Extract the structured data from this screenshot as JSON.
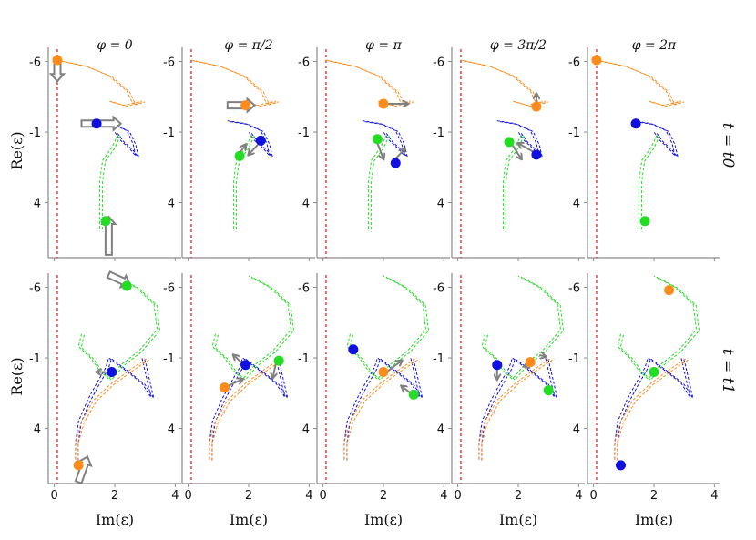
{
  "chart_data": {
    "type": "scatter",
    "title": "",
    "xlabel": "Im(ε)",
    "ylabel": "Re(ε)",
    "x_ticks": [
      "0",
      "2",
      "4"
    ],
    "y_ticks": [
      "-6",
      "-1",
      "4"
    ],
    "xlim": [
      -0.2,
      4.2
    ],
    "ylim": [
      -7.0,
      7.9
    ],
    "y_inverted": true,
    "column_titles": [
      "φ = 0",
      "φ = π/2",
      "φ = π",
      "φ = 3π/2",
      "φ = 2π"
    ],
    "row_labels": [
      "t = t0",
      "t = t1"
    ],
    "legend": "none",
    "colors": {
      "orange": "#ff8c1a",
      "blue": "#1010e0",
      "green": "#22dd22",
      "reference": "#e8232a",
      "arrow": "#808080"
    },
    "reference_line_x": 0.1,
    "rows": [
      {
        "row": "t = t0",
        "curves": [
          {
            "color": "orange",
            "points": [
              [
                0.1,
                -6.1
              ],
              [
                1.0,
                -5.7
              ],
              [
                1.8,
                -5.0
              ],
              [
                2.4,
                -3.9
              ],
              [
                2.6,
                -3.0
              ],
              [
                2.9,
                -3.2
              ],
              [
                2.3,
                -2.9
              ],
              [
                1.8,
                -3.2
              ]
            ]
          },
          {
            "color": "blue",
            "points": [
              [
                1.3,
                -1.8
              ],
              [
                1.9,
                -1.6
              ],
              [
                2.4,
                -1.1
              ],
              [
                2.6,
                -0.2
              ],
              [
                2.7,
                0.7
              ],
              [
                2.5,
                0.2
              ],
              [
                2.2,
                -0.4
              ],
              [
                2.0,
                -1.0
              ]
            ]
          },
          {
            "color": "green",
            "points": [
              [
                2.1,
                -0.8
              ],
              [
                1.9,
                0.1
              ],
              [
                1.6,
                1.0
              ],
              [
                1.5,
                2.5
              ],
              [
                1.5,
                4.0
              ],
              [
                1.5,
                6.0
              ]
            ]
          }
        ],
        "panels": [
          {
            "phi": "0",
            "points": [
              {
                "color": "orange",
                "x": 0.1,
                "y": -6.1
              },
              {
                "color": "blue",
                "x": 1.4,
                "y": -1.6
              },
              {
                "color": "green",
                "x": 1.7,
                "y": 5.3
              }
            ]
          },
          {
            "phi": "π/2",
            "points": [
              {
                "color": "orange",
                "x": 1.9,
                "y": -2.9
              },
              {
                "color": "blue",
                "x": 2.4,
                "y": -0.4
              },
              {
                "color": "green",
                "x": 1.7,
                "y": 0.7
              }
            ]
          },
          {
            "phi": "π",
            "points": [
              {
                "color": "orange",
                "x": 2.0,
                "y": -3.0
              },
              {
                "color": "blue",
                "x": 2.4,
                "y": 1.2
              },
              {
                "color": "green",
                "x": 1.8,
                "y": -0.5
              }
            ]
          },
          {
            "phi": "3π/2",
            "points": [
              {
                "color": "orange",
                "x": 2.6,
                "y": -2.8
              },
              {
                "color": "blue",
                "x": 2.6,
                "y": 0.6
              },
              {
                "color": "green",
                "x": 1.7,
                "y": -0.3
              }
            ]
          },
          {
            "phi": "2π",
            "points": [
              {
                "color": "orange",
                "x": 0.1,
                "y": -6.1
              },
              {
                "color": "blue",
                "x": 1.4,
                "y": -1.6
              },
              {
                "color": "green",
                "x": 1.7,
                "y": 5.3
              }
            ]
          }
        ]
      },
      {
        "row": "t = t1",
        "curves": [
          {
            "color": "blue",
            "points": [
              [
                0.7,
                6.2
              ],
              [
                0.7,
                5.0
              ],
              [
                0.8,
                3.5
              ],
              [
                1.1,
                2.0
              ],
              [
                1.4,
                0.8
              ],
              [
                1.7,
                -0.3
              ],
              [
                1.8,
                -1.0
              ],
              [
                2.3,
                -0.2
              ],
              [
                2.9,
                0.8
              ],
              [
                3.2,
                1.8
              ],
              [
                2.9,
                -1.0
              ]
            ]
          },
          {
            "color": "orange",
            "points": [
              [
                0.7,
                6.2
              ],
              [
                0.7,
                5.0
              ],
              [
                0.9,
                3.5
              ],
              [
                1.3,
                2.0
              ],
              [
                1.9,
                0.8
              ],
              [
                2.6,
                -0.3
              ],
              [
                3.1,
                -1.0
              ]
            ]
          },
          {
            "color": "green",
            "points": [
              [
                0.9,
                -2.7
              ],
              [
                0.8,
                -1.8
              ],
              [
                1.2,
                -1.0
              ],
              [
                1.5,
                -0.1
              ],
              [
                1.8,
                0.5
              ],
              [
                2.2,
                -0.5
              ],
              [
                2.8,
                -1.5
              ],
              [
                3.4,
                -3.0
              ],
              [
                3.3,
                -4.8
              ],
              [
                2.7,
                -6.0
              ],
              [
                2.0,
                -6.8
              ]
            ]
          }
        ],
        "panels": [
          {
            "phi": "0",
            "points": [
              {
                "color": "orange",
                "x": 0.8,
                "y": 6.6
              },
              {
                "color": "blue",
                "x": 1.9,
                "y": 0.0
              },
              {
                "color": "green",
                "x": 2.4,
                "y": -6.1
              }
            ]
          },
          {
            "phi": "π/2",
            "points": [
              {
                "color": "orange",
                "x": 1.2,
                "y": 1.1
              },
              {
                "color": "blue",
                "x": 1.9,
                "y": -0.5
              },
              {
                "color": "green",
                "x": 3.0,
                "y": -0.8
              }
            ]
          },
          {
            "phi": "π",
            "points": [
              {
                "color": "orange",
                "x": 2.0,
                "y": 0.0
              },
              {
                "color": "blue",
                "x": 1.0,
                "y": -1.6
              },
              {
                "color": "green",
                "x": 3.0,
                "y": 1.6
              }
            ]
          },
          {
            "phi": "3π/2",
            "points": [
              {
                "color": "orange",
                "x": 2.4,
                "y": -0.7
              },
              {
                "color": "blue",
                "x": 1.3,
                "y": -0.5
              },
              {
                "color": "green",
                "x": 3.0,
                "y": 1.3
              }
            ]
          },
          {
            "phi": "2π",
            "points": [
              {
                "color": "orange",
                "x": 2.5,
                "y": -5.8
              },
              {
                "color": "blue",
                "x": 0.9,
                "y": 6.6
              },
              {
                "color": "green",
                "x": 2.0,
                "y": 0.0
              }
            ]
          }
        ]
      }
    ],
    "annotations": [
      {
        "row": 0,
        "col": 0,
        "style": "hollow",
        "from": [
          0.1,
          -6.1
        ],
        "to": [
          0.1,
          -4.6
        ]
      },
      {
        "row": 0,
        "col": 0,
        "style": "hollow",
        "from": [
          0.9,
          -1.6
        ],
        "to": [
          2.2,
          -1.6
        ]
      },
      {
        "row": 0,
        "col": 0,
        "style": "hollow",
        "from": [
          1.8,
          7.7
        ],
        "to": [
          1.8,
          5.0
        ]
      },
      {
        "row": 0,
        "col": 1,
        "style": "hollow",
        "from": [
          1.3,
          -2.9
        ],
        "to": [
          2.2,
          -2.9
        ]
      },
      {
        "row": 0,
        "col": 1,
        "style": "line",
        "from": [
          2.3,
          -0.1
        ],
        "to": [
          2.0,
          0.6
        ]
      },
      {
        "row": 0,
        "col": 1,
        "style": "line",
        "from": [
          1.7,
          0.5
        ],
        "to": [
          1.9,
          -0.1
        ]
      },
      {
        "row": 0,
        "col": 2,
        "style": "line",
        "from": [
          2.0,
          -3.0
        ],
        "to": [
          2.8,
          -3.0
        ]
      },
      {
        "row": 0,
        "col": 2,
        "style": "line",
        "from": [
          2.4,
          0.9
        ],
        "to": [
          2.7,
          0.2
        ]
      },
      {
        "row": 0,
        "col": 2,
        "style": "line",
        "from": [
          1.8,
          -0.2
        ],
        "to": [
          2.0,
          0.9
        ]
      },
      {
        "row": 0,
        "col": 3,
        "style": "line",
        "from": [
          2.6,
          -3.1
        ],
        "to": [
          2.6,
          -3.7
        ]
      },
      {
        "row": 0,
        "col": 3,
        "style": "line",
        "from": [
          2.5,
          0.4
        ],
        "to": [
          2.0,
          -0.2
        ]
      },
      {
        "row": 0,
        "col": 3,
        "style": "line",
        "from": [
          1.8,
          -0.1
        ],
        "to": [
          2.1,
          0.9
        ]
      },
      {
        "row": 1,
        "col": 0,
        "style": "hollow",
        "from": [
          1.8,
          -6.9
        ],
        "to": [
          2.5,
          -6.2
        ]
      },
      {
        "row": 1,
        "col": 0,
        "style": "line",
        "from": [
          1.7,
          0.0
        ],
        "to": [
          1.4,
          0.0
        ]
      },
      {
        "row": 1,
        "col": 0,
        "style": "hollow",
        "from": [
          0.8,
          7.8
        ],
        "to": [
          1.1,
          6.0
        ]
      },
      {
        "row": 1,
        "col": 1,
        "style": "line",
        "from": [
          1.8,
          -0.6
        ],
        "to": [
          1.5,
          -1.2
        ]
      },
      {
        "row": 1,
        "col": 1,
        "style": "line",
        "from": [
          2.9,
          -0.6
        ],
        "to": [
          2.8,
          0.4
        ]
      },
      {
        "row": 1,
        "col": 1,
        "style": "line",
        "from": [
          1.3,
          1.0
        ],
        "to": [
          1.8,
          0.5
        ]
      },
      {
        "row": 1,
        "col": 2,
        "style": "line",
        "from": [
          2.1,
          0.0
        ],
        "to": [
          2.6,
          -0.8
        ]
      },
      {
        "row": 1,
        "col": 2,
        "style": "line",
        "from": [
          2.9,
          1.5
        ],
        "to": [
          2.6,
          1.0
        ]
      },
      {
        "row": 1,
        "col": 3,
        "style": "line",
        "from": [
          1.3,
          -0.3
        ],
        "to": [
          1.3,
          0.5
        ]
      },
      {
        "row": 1,
        "col": 3,
        "style": "line",
        "from": [
          2.7,
          -1.2
        ],
        "to": [
          2.9,
          -1.1
        ]
      },
      {
        "row": 1,
        "col": 3,
        "style": "line",
        "from": [
          2.5,
          -0.6
        ],
        "to": [
          2.2,
          -0.4
        ]
      }
    ]
  }
}
